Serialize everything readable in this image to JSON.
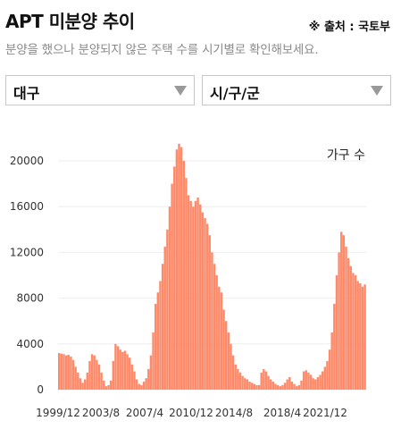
{
  "header": {
    "title": "APT 미분양 추이",
    "source": "※ 출처 : 국토부",
    "subtitle": "분양을 했으나 분양되지 않은 주택 수를 시기별로 확인해보세요."
  },
  "filters": {
    "region": "대구",
    "city": "시/구/군"
  },
  "colors": {
    "bar": "#ff8a6a",
    "grid": "#eeeeee"
  },
  "chart_data": {
    "type": "bar",
    "unit_label": "가구 수",
    "ylim": [
      0,
      20000
    ],
    "y_ticks": [
      0,
      4000,
      8000,
      12000,
      16000,
      20000
    ],
    "y_tick_labels": [
      "0",
      "4000",
      "8000",
      "12000",
      "16000",
      "20000"
    ],
    "x_tick_labels": [
      "1999/12",
      "2003/8",
      "2007/4",
      "2010/12",
      "2014/8",
      "2018/4",
      "2021/12"
    ],
    "x_range": [
      "1999/12",
      "2024/7"
    ],
    "grid": "horizontal",
    "series": [
      {
        "values": [
          3200,
          3150,
          3100,
          3000,
          3050,
          2900,
          2600,
          2000,
          1500,
          1000,
          600,
          900,
          1500,
          2500,
          3100,
          3000,
          2600,
          2200,
          1500,
          800,
          300,
          400,
          800,
          2500,
          4000,
          3800,
          3500,
          3300,
          3400,
          3100,
          2800,
          2200,
          1600,
          900,
          500,
          400,
          700,
          1000,
          1800,
          3000,
          5000,
          7500,
          8500,
          9500,
          11000,
          12500,
          14000,
          16000,
          18000,
          19500,
          21000,
          21500,
          21200,
          20000,
          18500,
          17000,
          16500,
          16000,
          16500,
          16800,
          16200,
          15500,
          15000,
          14500,
          13500,
          12000,
          11000,
          10000,
          9000,
          8500,
          7000,
          6000,
          5000,
          4000,
          3000,
          2200,
          1800,
          1500,
          1200,
          1000,
          900,
          700,
          600,
          500,
          400,
          400,
          1500,
          1800,
          1600,
          1200,
          900,
          700,
          500,
          400,
          300,
          400,
          600,
          900,
          1100,
          700,
          500,
          300,
          400,
          800,
          1600,
          1700,
          1500,
          1300,
          1000,
          900,
          1100,
          1300,
          1600,
          2000,
          2500,
          3500,
          5000,
          7500,
          10000,
          12000,
          13800,
          13500,
          12500,
          11500,
          10800,
          10200,
          10000,
          9500,
          9300,
          9000,
          9200
        ]
      }
    ]
  }
}
